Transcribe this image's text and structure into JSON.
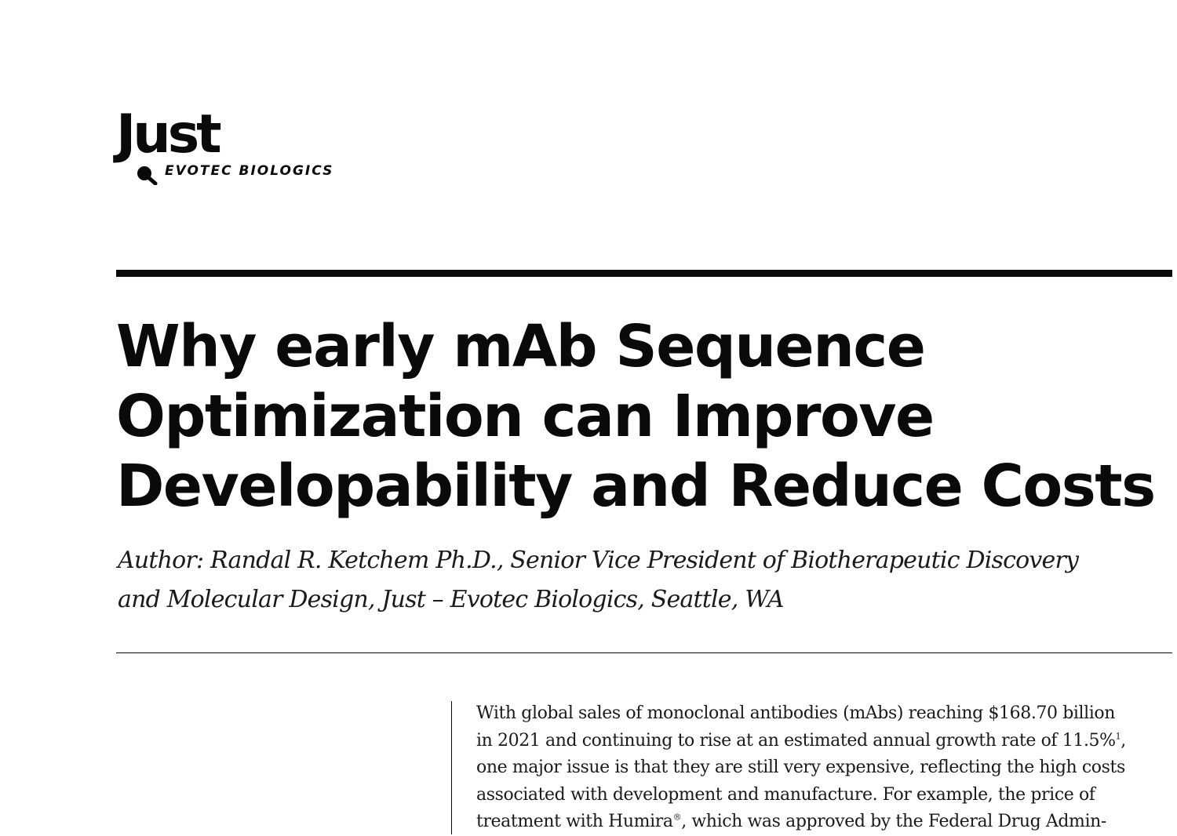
{
  "logo": {
    "wordmark": "Just",
    "subtitle": "EVOTEC BIOLOGICS"
  },
  "title": {
    "lines": [
      "Why early mAb Sequence",
      "Optimization can Improve",
      "Developability and Reduce Costs"
    ]
  },
  "author": {
    "lines": [
      "Author: Randal R. Ketchem Ph.D., Senior Vice President of Biotherapeutic Discovery",
      "and Molecular Design, Just – Evotec Biologics, Seattle, WA"
    ]
  },
  "body": {
    "line1": "With global sales of monoclonal antibodies (mAbs) reaching $168.70 billion",
    "line2_before": "in 2021 and continuing to rise at an estimated annual growth rate of 11.5%",
    "line2_sup": "1",
    "line2_after": ",",
    "line3": "one major issue is that they are still very expensive, reflecting the high costs",
    "line4": "associated with development and manufacture. For example, the price of",
    "line5_before": "treatment with Humira",
    "line5_sup": "®",
    "line5_after": ", which was approved by the Federal Drug Admin-"
  }
}
